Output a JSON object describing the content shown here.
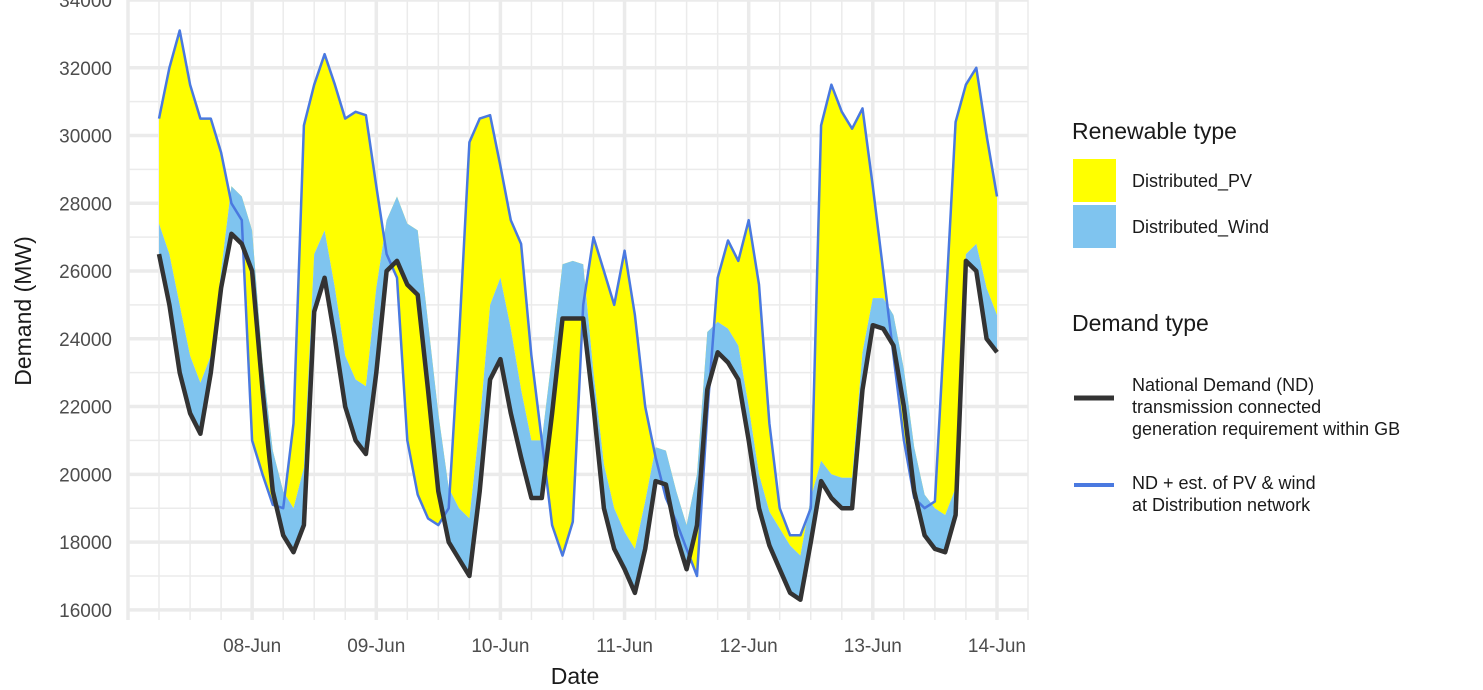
{
  "chart_data": {
    "type": "area",
    "xlabel": "Date",
    "ylabel": "Demand (MW)",
    "x_range": [
      "2021-06-07 00:00",
      "2021-06-14 06:00"
    ],
    "ylim": [
      15700,
      34000
    ],
    "y_ticks": [
      16000,
      18000,
      20000,
      22000,
      24000,
      26000,
      28000,
      30000,
      32000,
      34000
    ],
    "x_ticks": [
      {
        "label": "08-Jun",
        "date": "2021-06-08"
      },
      {
        "label": "09-Jun",
        "date": "2021-06-09"
      },
      {
        "label": "10-Jun",
        "date": "2021-06-10"
      },
      {
        "label": "11-Jun",
        "date": "2021-06-11"
      },
      {
        "label": "12-Jun",
        "date": "2021-06-12"
      },
      {
        "label": "13-Jun",
        "date": "2021-06-13"
      },
      {
        "label": "14-Jun",
        "date": "2021-06-14"
      }
    ],
    "grid": true,
    "legend_position": "right",
    "colors": {
      "Distributed_PV": "#ffff00",
      "Distributed_Wind": "#7fc4ef",
      "nd_line": "#333333",
      "total_line": "#4a79e0",
      "grid": "#ebebeb"
    },
    "x": [
      "2021-06-07 06:00",
      "2021-06-07 08:00",
      "2021-06-07 10:00",
      "2021-06-07 12:00",
      "2021-06-07 14:00",
      "2021-06-07 16:00",
      "2021-06-07 18:00",
      "2021-06-07 20:00",
      "2021-06-07 22:00",
      "2021-06-08 00:00",
      "2021-06-08 02:00",
      "2021-06-08 04:00",
      "2021-06-08 06:00",
      "2021-06-08 08:00",
      "2021-06-08 10:00",
      "2021-06-08 12:00",
      "2021-06-08 14:00",
      "2021-06-08 16:00",
      "2021-06-08 18:00",
      "2021-06-08 20:00",
      "2021-06-08 22:00",
      "2021-06-09 00:00",
      "2021-06-09 02:00",
      "2021-06-09 04:00",
      "2021-06-09 06:00",
      "2021-06-09 08:00",
      "2021-06-09 10:00",
      "2021-06-09 12:00",
      "2021-06-09 14:00",
      "2021-06-09 16:00",
      "2021-06-09 18:00",
      "2021-06-09 20:00",
      "2021-06-09 22:00",
      "2021-06-10 00:00",
      "2021-06-10 02:00",
      "2021-06-10 04:00",
      "2021-06-10 06:00",
      "2021-06-10 08:00",
      "2021-06-10 10:00",
      "2021-06-10 12:00",
      "2021-06-10 14:00",
      "2021-06-10 16:00",
      "2021-06-10 18:00",
      "2021-06-10 20:00",
      "2021-06-10 22:00",
      "2021-06-11 00:00",
      "2021-06-11 02:00",
      "2021-06-11 04:00",
      "2021-06-11 06:00",
      "2021-06-11 08:00",
      "2021-06-11 10:00",
      "2021-06-11 12:00",
      "2021-06-11 14:00",
      "2021-06-11 16:00",
      "2021-06-11 18:00",
      "2021-06-11 20:00",
      "2021-06-11 22:00",
      "2021-06-12 00:00",
      "2021-06-12 02:00",
      "2021-06-12 04:00",
      "2021-06-12 06:00",
      "2021-06-12 08:00",
      "2021-06-12 10:00",
      "2021-06-12 12:00",
      "2021-06-12 14:00",
      "2021-06-12 16:00",
      "2021-06-12 18:00",
      "2021-06-12 20:00",
      "2021-06-12 22:00",
      "2021-06-13 00:00",
      "2021-06-13 02:00",
      "2021-06-13 04:00",
      "2021-06-13 06:00",
      "2021-06-13 08:00",
      "2021-06-13 10:00",
      "2021-06-13 12:00",
      "2021-06-13 14:00",
      "2021-06-13 16:00",
      "2021-06-13 18:00",
      "2021-06-13 20:00",
      "2021-06-13 22:00",
      "2021-06-14 00:00"
    ],
    "series": [
      {
        "name": "National Demand (ND) transmission connected generation requirement within GB",
        "values": [
          26500,
          25000,
          23000,
          21800,
          21200,
          23000,
          25500,
          27100,
          26800,
          26000,
          22500,
          19500,
          18200,
          17700,
          18500,
          24800,
          25800,
          24000,
          22000,
          21000,
          20600,
          23000,
          26000,
          26300,
          25600,
          25300,
          22500,
          19500,
          18000,
          17500,
          17000,
          19500,
          22800,
          23400,
          21800,
          20500,
          19300,
          19300,
          21800,
          24600,
          24600,
          24600,
          22000,
          19000,
          17800,
          17200,
          16500,
          17800,
          19800,
          19700,
          18200,
          17200,
          18500,
          22500,
          23600,
          23300,
          22800,
          21000,
          19000,
          17900,
          17200,
          16500,
          16300,
          18000,
          19800,
          19300,
          19000,
          19000,
          22500,
          24400,
          24300,
          23800,
          22000,
          19500,
          18200,
          17800,
          17700,
          18800,
          26300,
          26000,
          24000,
          23600
        ],
        "wind_component": [
          27400,
          26500,
          25000,
          23500,
          22700,
          23500,
          26000,
          28500,
          28200,
          27200,
          23300,
          20700,
          19500,
          19000,
          20200,
          26500,
          27200,
          25500,
          23500,
          22800,
          22600,
          25500,
          27500,
          28200,
          27400,
          27200,
          24500,
          21800,
          19600,
          19000,
          18700,
          21500,
          25000,
          25800,
          24300,
          22500,
          21000,
          21000,
          23500,
          26200,
          26300,
          26200,
          23000,
          20300,
          19000,
          18300,
          17800,
          19200,
          20800,
          20700,
          19500,
          18500,
          20000,
          24200,
          24500,
          24300,
          23800,
          22000,
          20000,
          18900,
          18400,
          17900,
          17600,
          19300,
          20400,
          20000,
          19900,
          19900,
          23600,
          25200,
          25200,
          24700,
          23100,
          20800,
          19400,
          19000,
          18800,
          19600,
          26500,
          26800,
          25500,
          24700
        ],
        "pv_component": [
          30500,
          32000,
          33100,
          31500,
          30500,
          30500,
          29500,
          28000,
          27500,
          21000,
          20000,
          19100,
          19000,
          21500,
          30300,
          31500,
          32400,
          31500,
          30500,
          30700,
          30600,
          28500,
          26500,
          25800,
          21000,
          19400,
          18700,
          18500,
          19000,
          24000,
          29800,
          30500,
          30600,
          29100,
          27500,
          26800,
          23500,
          21000,
          18500,
          17600,
          18600,
          25000,
          27000,
          26000,
          25000,
          26600,
          24700,
          22000,
          20500,
          19300,
          18600,
          17800,
          17000,
          21800,
          25800,
          26900,
          26300,
          27500,
          25600,
          21500,
          19000,
          18200,
          18200,
          19000,
          30300,
          31500,
          30700,
          30200,
          30800,
          28500,
          26000,
          23500,
          21000,
          19300,
          19000,
          19200,
          24700,
          30400,
          31500,
          32000,
          30000,
          28200
        ]
      }
    ]
  },
  "axes": {
    "y_tick_labels": [
      "16000",
      "18000",
      "20000",
      "22000",
      "24000",
      "26000",
      "28000",
      "30000",
      "32000",
      "34000"
    ],
    "x_tick_labels": [
      "08-Jun",
      "09-Jun",
      "10-Jun",
      "11-Jun",
      "12-Jun",
      "13-Jun",
      "14-Jun"
    ],
    "xlabel": "Date",
    "ylabel": "Demand (MW)"
  },
  "legend": {
    "renewable_title": "Renewable type",
    "renewable_items": [
      {
        "label": "Distributed_PV",
        "color": "#ffff00"
      },
      {
        "label": "Distributed_Wind",
        "color": "#7fc4ef"
      }
    ],
    "demand_title": "Demand type",
    "demand_items": [
      {
        "lines": [
          "National Demand (ND)",
          "transmission connected",
          "generation requirement within GB"
        ],
        "color": "#333333"
      },
      {
        "lines": [
          "ND + est. of PV & wind",
          "at Distribution network"
        ],
        "color": "#4a79e0"
      }
    ]
  }
}
